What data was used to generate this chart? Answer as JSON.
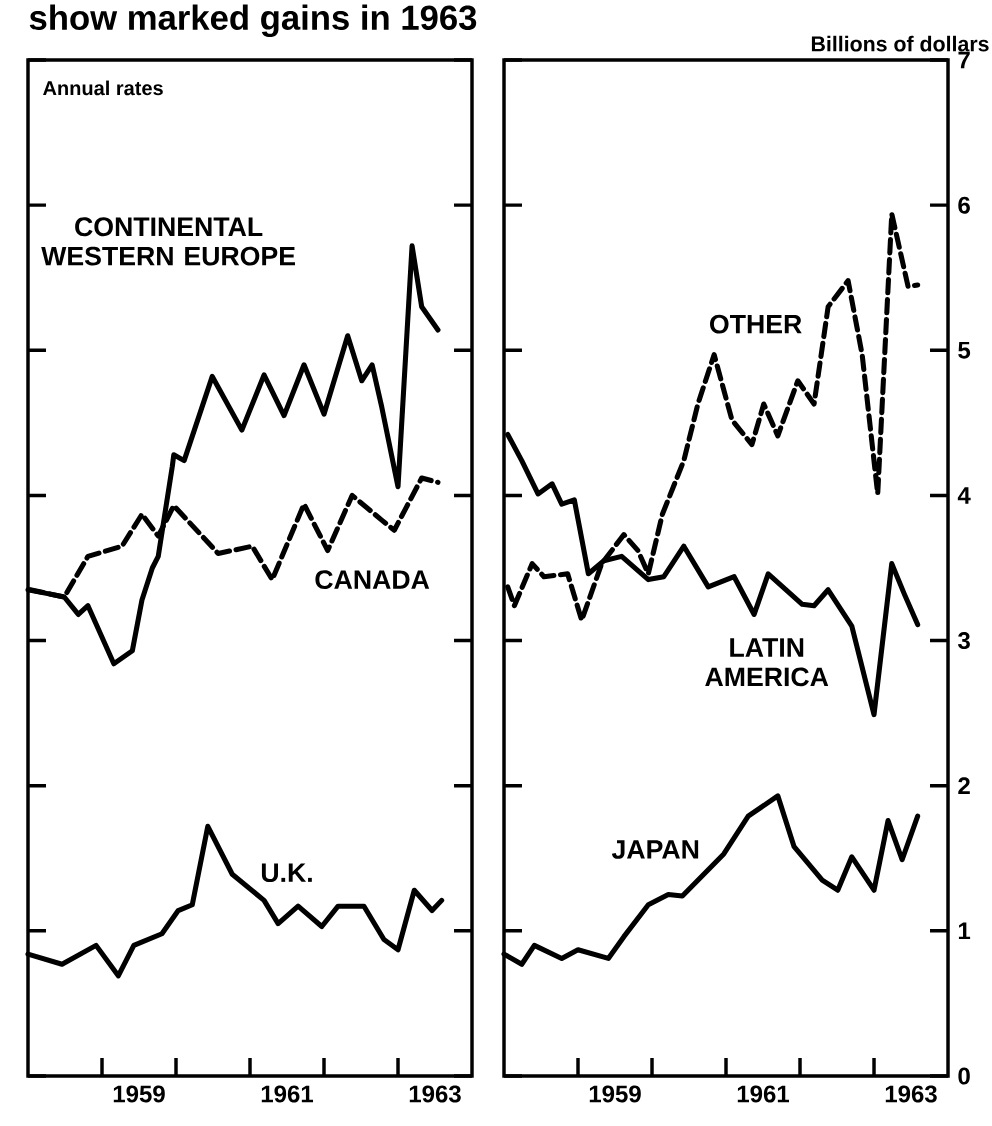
{
  "chart_data": [
    {
      "type": "line",
      "title": "show marked gains in 1963",
      "annotations": [
        "Annual rates"
      ],
      "xlim": [
        1958,
        1964
      ],
      "ylim": [
        0,
        7
      ],
      "yticks": [
        0,
        1,
        2,
        3,
        4,
        5,
        6,
        7
      ],
      "tick_labels": "x",
      "xticks": [
        {
          "value": 1959,
          "label": null
        },
        {
          "value": 1960,
          "label": null
        },
        {
          "value": 1961,
          "label": null
        },
        {
          "value": 1962,
          "label": null
        },
        {
          "value": 1963,
          "label": null
        },
        {
          "value": 1959.5,
          "label": "1959"
        },
        {
          "value": 1961.5,
          "label": "1961"
        },
        {
          "value": 1963.5,
          "label": "1963"
        }
      ],
      "series": [
        {
          "name": "CONTINENTAL WESTERN EUROPE",
          "color": "#000000",
          "line_style": "solid",
          "x": [
            1958.0,
            1958.3,
            1958.49,
            1958.68,
            1958.81,
            1959.16,
            1959.41,
            1959.54,
            1959.68,
            1959.76,
            1959.95,
            1959.97,
            1960.11,
            1960.49,
            1960.89,
            1961.19,
            1961.46,
            1961.73,
            1962.0,
            1962.32,
            1962.51,
            1962.65,
            1962.78,
            1963.0,
            1963.19,
            1963.32,
            1963.54
          ],
          "values": [
            3.35,
            3.32,
            3.3,
            3.18,
            3.24,
            2.84,
            2.93,
            3.28,
            3.5,
            3.58,
            4.2,
            4.28,
            4.24,
            4.82,
            4.45,
            4.83,
            4.55,
            4.9,
            4.56,
            5.1,
            4.79,
            4.9,
            4.61,
            4.06,
            5.72,
            5.3,
            5.14
          ]
        },
        {
          "name": "CANADA",
          "color": "#000000",
          "line_style": "dashed",
          "x": [
            1958.03,
            1958.49,
            1958.81,
            1959.27,
            1959.54,
            1959.76,
            1959.97,
            1960.57,
            1961.03,
            1961.3,
            1961.73,
            1962.05,
            1962.38,
            1962.78,
            1962.95,
            1963.32,
            1963.54
          ],
          "values": [
            3.35,
            3.3,
            3.58,
            3.65,
            3.87,
            3.72,
            3.93,
            3.6,
            3.65,
            3.42,
            3.94,
            3.62,
            4.0,
            3.83,
            3.76,
            4.12,
            4.09
          ]
        },
        {
          "name": "U.K.",
          "color": "#000000",
          "line_style": "solid",
          "x": [
            1958.0,
            1958.46,
            1958.92,
            1959.22,
            1959.43,
            1959.81,
            1960.03,
            1960.22,
            1960.43,
            1960.76,
            1961.19,
            1961.38,
            1961.65,
            1961.97,
            1962.19,
            1962.54,
            1962.81,
            1963.0,
            1963.22,
            1963.46,
            1963.59
          ],
          "values": [
            0.84,
            0.77,
            0.9,
            0.69,
            0.9,
            0.98,
            1.14,
            1.18,
            1.72,
            1.39,
            1.21,
            1.05,
            1.17,
            1.03,
            1.17,
            1.17,
            0.94,
            0.87,
            1.28,
            1.14,
            1.21
          ]
        }
      ]
    },
    {
      "type": "line",
      "ylabel": "Billions of dollars",
      "xlim": [
        1958,
        1964
      ],
      "ylim": [
        0,
        7
      ],
      "yticks": [
        0,
        1,
        2,
        3,
        4,
        5,
        6,
        7
      ],
      "xticks": [
        {
          "value": 1959,
          "label": null
        },
        {
          "value": 1960,
          "label": null
        },
        {
          "value": 1961,
          "label": null
        },
        {
          "value": 1962,
          "label": null
        },
        {
          "value": 1963,
          "label": null
        },
        {
          "value": 1959.5,
          "label": "1959"
        },
        {
          "value": 1961.5,
          "label": "1961"
        },
        {
          "value": 1963.5,
          "label": "1963"
        }
      ],
      "series": [
        {
          "name": "OTHER",
          "color": "#000000",
          "line_style": "dashed",
          "x": [
            1958.05,
            1958.14,
            1958.38,
            1958.54,
            1958.86,
            1959.05,
            1959.32,
            1959.62,
            1959.81,
            1959.95,
            1960.14,
            1960.43,
            1960.62,
            1960.84,
            1961.08,
            1961.35,
            1961.51,
            1961.7,
            1961.97,
            1962.19,
            1962.38,
            1962.65,
            1962.84,
            1963.05,
            1963.24,
            1963.46,
            1963.59
          ],
          "values": [
            3.37,
            3.24,
            3.53,
            3.44,
            3.46,
            3.14,
            3.53,
            3.73,
            3.62,
            3.46,
            3.87,
            4.24,
            4.63,
            4.97,
            4.52,
            4.35,
            4.63,
            4.41,
            4.79,
            4.63,
            5.3,
            5.48,
            4.97,
            4.01,
            5.94,
            5.44,
            5.45
          ]
        },
        {
          "name": "LATIN AMERICA",
          "color": "#000000",
          "line_style": "solid",
          "x": [
            1958.05,
            1958.24,
            1958.46,
            1958.65,
            1958.78,
            1958.95,
            1959.14,
            1959.35,
            1959.59,
            1959.95,
            1960.16,
            1960.43,
            1960.76,
            1961.11,
            1961.38,
            1961.57,
            1962.03,
            1962.19,
            1962.38,
            1962.7,
            1963.0,
            1963.24,
            1963.41,
            1963.59
          ],
          "values": [
            4.42,
            4.24,
            4.01,
            4.08,
            3.94,
            3.97,
            3.46,
            3.55,
            3.58,
            3.42,
            3.44,
            3.65,
            3.37,
            3.44,
            3.18,
            3.46,
            3.25,
            3.24,
            3.35,
            3.1,
            2.49,
            3.53,
            3.32,
            3.11
          ]
        },
        {
          "name": "JAPAN",
          "color": "#000000",
          "line_style": "solid",
          "x": [
            1958.0,
            1958.24,
            1958.41,
            1958.78,
            1959.0,
            1959.41,
            1959.62,
            1959.95,
            1960.22,
            1960.41,
            1960.68,
            1960.97,
            1961.3,
            1961.7,
            1961.92,
            1962.3,
            1962.51,
            1962.7,
            1963.0,
            1963.19,
            1963.38,
            1963.59
          ],
          "values": [
            0.84,
            0.77,
            0.9,
            0.81,
            0.87,
            0.81,
            0.96,
            1.18,
            1.25,
            1.24,
            1.38,
            1.53,
            1.79,
            1.93,
            1.58,
            1.35,
            1.28,
            1.51,
            1.28,
            1.76,
            1.49,
            1.79
          ]
        }
      ]
    }
  ]
}
